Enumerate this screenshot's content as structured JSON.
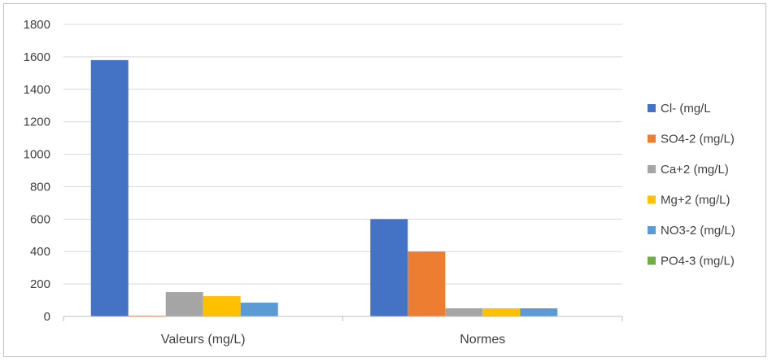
{
  "chart_data": {
    "type": "bar",
    "title": "",
    "xlabel": "",
    "ylabel": "",
    "categories": [
      "Valeurs (mg/L)",
      "Normes"
    ],
    "ylim": [
      0,
      1800
    ],
    "yticks": [
      0,
      200,
      400,
      600,
      800,
      1000,
      1200,
      1400,
      1600,
      1800
    ],
    "grid": true,
    "legend_position": "right",
    "series": [
      {
        "name": "Cl- (mg/L",
        "color": "#4472C4",
        "values": [
          1580,
          600
        ]
      },
      {
        "name": "SO4-2 (mg/L)",
        "color": "#ED7D31",
        "values": [
          5,
          400
        ]
      },
      {
        "name": "Ca+2 (mg/L)",
        "color": "#A5A5A5",
        "values": [
          150,
          50
        ]
      },
      {
        "name": "Mg+2 (mg/L)",
        "color": "#FFC000",
        "values": [
          125,
          50
        ]
      },
      {
        "name": "NO3-2 (mg/L)",
        "color": "#5B9BD5",
        "values": [
          85,
          50
        ]
      },
      {
        "name": "PO4-3 (mg/L)",
        "color": "#70AD47",
        "values": [
          0,
          0
        ]
      }
    ]
  }
}
